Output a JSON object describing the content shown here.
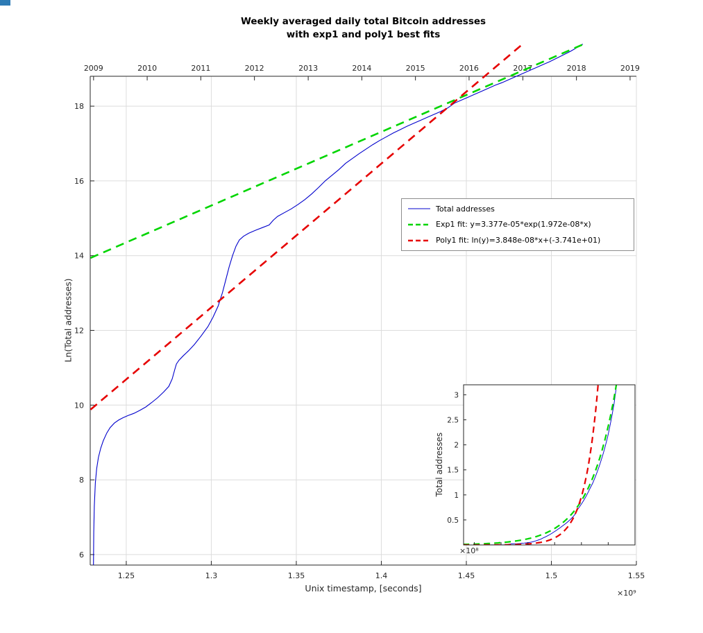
{
  "title": {
    "line1": "Weekly averaged daily total Bitcoin addresses",
    "line2": "with exp1 and poly1 best fits"
  },
  "corner_artifact_color": "#2d7bb5",
  "chart_data": {
    "type": "line",
    "title": "Weekly averaged daily total Bitcoin addresses with exp1 and poly1 best fits",
    "xlabel": "Unix timestamp, [seconds]",
    "ylabel": "Ln(Total addresses)",
    "grid": true,
    "legend_position": "middle-right",
    "x_axis": {
      "lim_e9": [
        1.2288,
        1.55
      ],
      "ticks": [
        1.25,
        1.3,
        1.35,
        1.4,
        1.45,
        1.5,
        1.55
      ],
      "tick_labels": [
        "1.25",
        "1.3",
        "1.35",
        "1.4",
        "1.45",
        "1.5",
        "1.55"
      ],
      "multiplier": "×10⁹"
    },
    "y_axis": {
      "lim": [
        5.72,
        18.8
      ],
      "ticks": [
        6,
        8,
        10,
        12,
        14,
        16,
        18
      ]
    },
    "top_axis_years": [
      {
        "label": "2009",
        "t_e9": 1.23077
      },
      {
        "label": "2010",
        "t_e9": 1.2623
      },
      {
        "label": "2011",
        "t_e9": 1.29384
      },
      {
        "label": "2012",
        "t_e9": 1.32538
      },
      {
        "label": "2013",
        "t_e9": 1.357
      },
      {
        "label": "2014",
        "t_e9": 1.38853
      },
      {
        "label": "2015",
        "t_e9": 1.42007
      },
      {
        "label": "2016",
        "t_e9": 1.45161
      },
      {
        "label": "2017",
        "t_e9": 1.48323
      },
      {
        "label": "2018",
        "t_e9": 1.51476
      },
      {
        "label": "2019",
        "t_e9": 1.5463
      }
    ],
    "style": {
      "grid_color": "#dcdcdc",
      "axis_color": "#262626",
      "tick_color": "#262626",
      "background": "#ffffff"
    },
    "series": [
      {
        "id": "total-addresses",
        "name": "Total addresses",
        "color": "#0000cc",
        "line": "solid",
        "width": 1.1,
        "points": [
          [
            1.2307,
            5.72
          ],
          [
            1.2309,
            6.6
          ],
          [
            1.2312,
            7.3
          ],
          [
            1.2318,
            7.92
          ],
          [
            1.2326,
            8.3
          ],
          [
            1.2336,
            8.6
          ],
          [
            1.235,
            8.85
          ],
          [
            1.2365,
            9.05
          ],
          [
            1.2385,
            9.25
          ],
          [
            1.2405,
            9.4
          ],
          [
            1.243,
            9.52
          ],
          [
            1.2455,
            9.6
          ],
          [
            1.248,
            9.66
          ],
          [
            1.251,
            9.72
          ],
          [
            1.2545,
            9.78
          ],
          [
            1.258,
            9.86
          ],
          [
            1.2615,
            9.95
          ],
          [
            1.265,
            10.07
          ],
          [
            1.2685,
            10.2
          ],
          [
            1.272,
            10.35
          ],
          [
            1.275,
            10.5
          ],
          [
            1.277,
            10.7
          ],
          [
            1.2785,
            10.95
          ],
          [
            1.2795,
            11.1
          ],
          [
            1.281,
            11.2
          ],
          [
            1.2835,
            11.32
          ],
          [
            1.2865,
            11.45
          ],
          [
            1.29,
            11.62
          ],
          [
            1.294,
            11.85
          ],
          [
            1.298,
            12.1
          ],
          [
            1.301,
            12.35
          ],
          [
            1.304,
            12.65
          ],
          [
            1.3065,
            13.0
          ],
          [
            1.3085,
            13.35
          ],
          [
            1.3105,
            13.7
          ],
          [
            1.3125,
            14.0
          ],
          [
            1.3145,
            14.25
          ],
          [
            1.3165,
            14.42
          ],
          [
            1.319,
            14.52
          ],
          [
            1.322,
            14.6
          ],
          [
            1.326,
            14.68
          ],
          [
            1.33,
            14.75
          ],
          [
            1.334,
            14.82
          ],
          [
            1.3365,
            14.95
          ],
          [
            1.339,
            15.05
          ],
          [
            1.343,
            15.15
          ],
          [
            1.347,
            15.25
          ],
          [
            1.351,
            15.37
          ],
          [
            1.355,
            15.5
          ],
          [
            1.359,
            15.65
          ],
          [
            1.363,
            15.82
          ],
          [
            1.367,
            16.0
          ],
          [
            1.371,
            16.15
          ],
          [
            1.375,
            16.3
          ],
          [
            1.379,
            16.47
          ],
          [
            1.383,
            16.6
          ],
          [
            1.387,
            16.73
          ],
          [
            1.391,
            16.85
          ],
          [
            1.395,
            16.97
          ],
          [
            1.399,
            17.08
          ],
          [
            1.403,
            17.18
          ],
          [
            1.407,
            17.28
          ],
          [
            1.411,
            17.37
          ],
          [
            1.415,
            17.46
          ],
          [
            1.419,
            17.54
          ],
          [
            1.423,
            17.62
          ],
          [
            1.427,
            17.7
          ],
          [
            1.431,
            17.78
          ],
          [
            1.435,
            17.86
          ],
          [
            1.439,
            17.95
          ],
          [
            1.443,
            18.08
          ],
          [
            1.447,
            18.16
          ],
          [
            1.451,
            18.24
          ],
          [
            1.455,
            18.32
          ],
          [
            1.459,
            18.4
          ],
          [
            1.463,
            18.48
          ],
          [
            1.467,
            18.56
          ],
          [
            1.471,
            18.63
          ],
          [
            1.475,
            18.71
          ],
          [
            1.479,
            18.79
          ],
          [
            1.483,
            18.87
          ],
          [
            1.487,
            18.95
          ],
          [
            1.491,
            19.03
          ],
          [
            1.495,
            19.11
          ],
          [
            1.499,
            19.19
          ],
          [
            1.503,
            19.28
          ],
          [
            1.507,
            19.37
          ],
          [
            1.511,
            19.46
          ],
          [
            1.514,
            19.54
          ],
          [
            1.5165,
            19.61
          ],
          [
            1.5185,
            19.66
          ]
        ]
      },
      {
        "id": "exp1-fit",
        "name": "Exp1 fit: y=3.377e-05*exp(1.972e-08*x)",
        "color": "#00d500",
        "line": "dashed",
        "width": 2.6,
        "fit": "exp1",
        "a": 3.377e-05,
        "b": 1.972e-08,
        "t_range_e9": [
          1.229,
          1.5185
        ]
      },
      {
        "id": "poly1-fit",
        "name": "Poly1 fit: ln(y)=3.848e-08*x+(-3.741e+01)",
        "color": "#e60000",
        "line": "dashed",
        "width": 2.6,
        "fit": "poly1",
        "p1": 3.848e-08,
        "p0": -37.41,
        "t_range_e9": [
          1.229,
          1.4836
        ]
      }
    ],
    "inset": {
      "ylabel": "Total addresses",
      "multiplier": "×10⁸",
      "xlim_e9": [
        1.23,
        1.55
      ],
      "ylim_e8": [
        0,
        3.2
      ],
      "y_ticks": [
        0.5,
        1,
        1.5,
        2,
        2.5,
        3
      ],
      "y_tick_labels": [
        "0.5",
        "1",
        "1.5",
        "2",
        "2.5",
        "3"
      ]
    }
  }
}
